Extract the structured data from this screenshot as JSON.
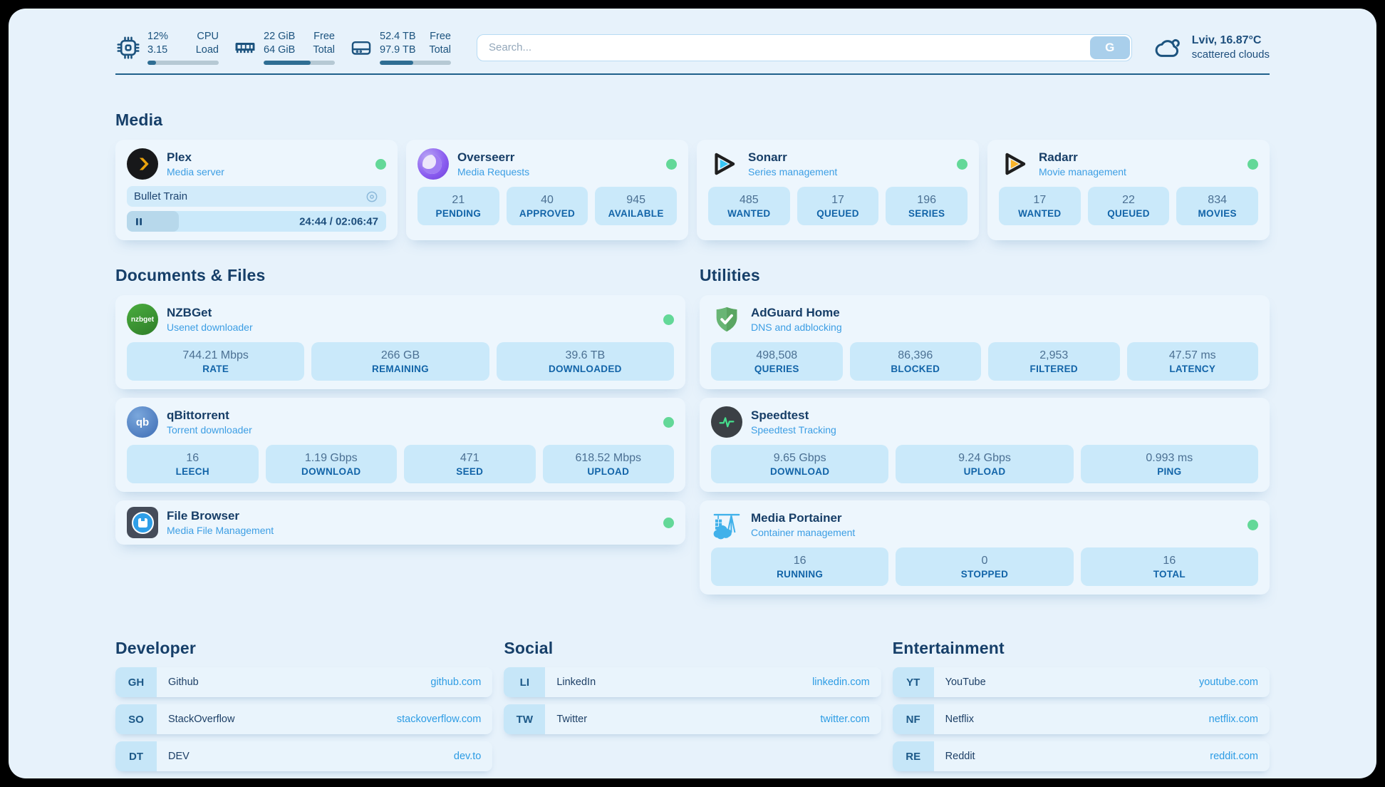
{
  "topbar": {
    "stats": [
      {
        "icon": "cpu-icon",
        "values": [
          "12%",
          "3.15"
        ],
        "labels": [
          "CPU",
          "Load"
        ],
        "progress": 12
      },
      {
        "icon": "ram-icon",
        "values": [
          "22 GiB",
          "64 GiB"
        ],
        "labels": [
          "Free",
          "Total"
        ],
        "progress": 66
      },
      {
        "icon": "disk-icon",
        "values": [
          "52.4 TB",
          "97.9 TB"
        ],
        "labels": [
          "Free",
          "Total"
        ],
        "progress": 47
      }
    ],
    "search": {
      "placeholder": "Search...",
      "engine_button": "G"
    },
    "weather": {
      "icon": "cloud-icon",
      "location": "Lviv, 16.87°C",
      "condition": "scattered clouds"
    }
  },
  "sections": {
    "media": {
      "title": "Media",
      "plex": {
        "name": "Plex",
        "subtitle": "Media server",
        "icon": "plex-icon",
        "online": true,
        "session": {
          "title": "Bullet Train",
          "time": "24:44 / 02:06:47",
          "progress": 20
        }
      },
      "overseerr": {
        "name": "Overseerr",
        "subtitle": "Media Requests",
        "icon": "overseerr-icon",
        "online": true,
        "stats": [
          {
            "value": "21",
            "label": "PENDING"
          },
          {
            "value": "40",
            "label": "APPROVED"
          },
          {
            "value": "945",
            "label": "AVAILABLE"
          }
        ]
      },
      "sonarr": {
        "name": "Sonarr",
        "subtitle": "Series management",
        "icon": "sonarr-icon",
        "online": true,
        "stats": [
          {
            "value": "485",
            "label": "WANTED"
          },
          {
            "value": "17",
            "label": "QUEUED"
          },
          {
            "value": "196",
            "label": "SERIES"
          }
        ]
      },
      "radarr": {
        "name": "Radarr",
        "subtitle": "Movie management",
        "icon": "radarr-icon",
        "online": true,
        "stats": [
          {
            "value": "17",
            "label": "WANTED"
          },
          {
            "value": "22",
            "label": "QUEUED"
          },
          {
            "value": "834",
            "label": "MOVIES"
          }
        ]
      }
    },
    "documents": {
      "title": "Documents & Files",
      "nzbget": {
        "name": "NZBGet",
        "subtitle": "Usenet downloader",
        "icon": "nzbget-icon",
        "logo_text": "nzbget",
        "online": true,
        "stats": [
          {
            "value": "744.21 Mbps",
            "label": "RATE"
          },
          {
            "value": "266 GB",
            "label": "REMAINING"
          },
          {
            "value": "39.6 TB",
            "label": "DOWNLOADED"
          }
        ]
      },
      "qbittorrent": {
        "name": "qBittorrent",
        "subtitle": "Torrent downloader",
        "icon": "qbittorrent-icon",
        "logo_text": "qb",
        "online": true,
        "stats": [
          {
            "value": "16",
            "label": "LEECH"
          },
          {
            "value": "1.19 Gbps",
            "label": "DOWNLOAD"
          },
          {
            "value": "471",
            "label": "SEED"
          },
          {
            "value": "618.52 Mbps",
            "label": "UPLOAD"
          }
        ]
      },
      "filebrowser": {
        "name": "File Browser",
        "subtitle": "Media File Management",
        "icon": "filebrowser-icon",
        "online": true
      }
    },
    "utilities": {
      "title": "Utilities",
      "adguard": {
        "name": "AdGuard Home",
        "subtitle": "DNS and adblocking",
        "icon": "adguard-icon",
        "stats": [
          {
            "value": "498,508",
            "label": "QUERIES"
          },
          {
            "value": "86,396",
            "label": "BLOCKED"
          },
          {
            "value": "2,953",
            "label": "FILTERED"
          },
          {
            "value": "47.57 ms",
            "label": "LATENCY"
          }
        ]
      },
      "speedtest": {
        "name": "Speedtest",
        "subtitle": "Speedtest Tracking",
        "icon": "speedtest-icon",
        "stats": [
          {
            "value": "9.65 Gbps",
            "label": "DOWNLOAD"
          },
          {
            "value": "9.24 Gbps",
            "label": "UPLOAD"
          },
          {
            "value": "0.993 ms",
            "label": "PING"
          }
        ]
      },
      "portainer": {
        "name": "Media Portainer",
        "subtitle": "Container management",
        "icon": "portainer-icon",
        "online": true,
        "stats": [
          {
            "value": "16",
            "label": "RUNNING"
          },
          {
            "value": "0",
            "label": "STOPPED"
          },
          {
            "value": "16",
            "label": "TOTAL"
          }
        ]
      }
    },
    "link_groups": [
      {
        "title": "Developer",
        "items": [
          {
            "abbr": "GH",
            "name": "Github",
            "url": "github.com"
          },
          {
            "abbr": "SO",
            "name": "StackOverflow",
            "url": "stackoverflow.com"
          },
          {
            "abbr": "DT",
            "name": "DEV",
            "url": "dev.to"
          }
        ]
      },
      {
        "title": "Social",
        "items": [
          {
            "abbr": "LI",
            "name": "LinkedIn",
            "url": "linkedin.com"
          },
          {
            "abbr": "TW",
            "name": "Twitter",
            "url": "twitter.com"
          }
        ]
      },
      {
        "title": "Entertainment",
        "items": [
          {
            "abbr": "YT",
            "name": "YouTube",
            "url": "youtube.com"
          },
          {
            "abbr": "NF",
            "name": "Netflix",
            "url": "netflix.com"
          },
          {
            "abbr": "RE",
            "name": "Reddit",
            "url": "reddit.com"
          }
        ]
      }
    ]
  },
  "colors": {
    "panel_bg": "#e7f2fb",
    "card_bg": "#edf6fd",
    "statbox_bg": "#cae9fa",
    "navy_heading": "#163f69",
    "subtitle_blue": "#3c9ee4",
    "label_blue": "#1264a8",
    "url_blue": "#2d9ce4",
    "status_online_green": "#63d898",
    "topbar_bar_fill": "#2f6e93",
    "plex_gold": "#eba30c",
    "sonarr_cyan": "#38c6f4",
    "radarr_orange": "#f8b32a",
    "adguard_green": "#68b574",
    "portainer_blue": "#41b1ea"
  }
}
